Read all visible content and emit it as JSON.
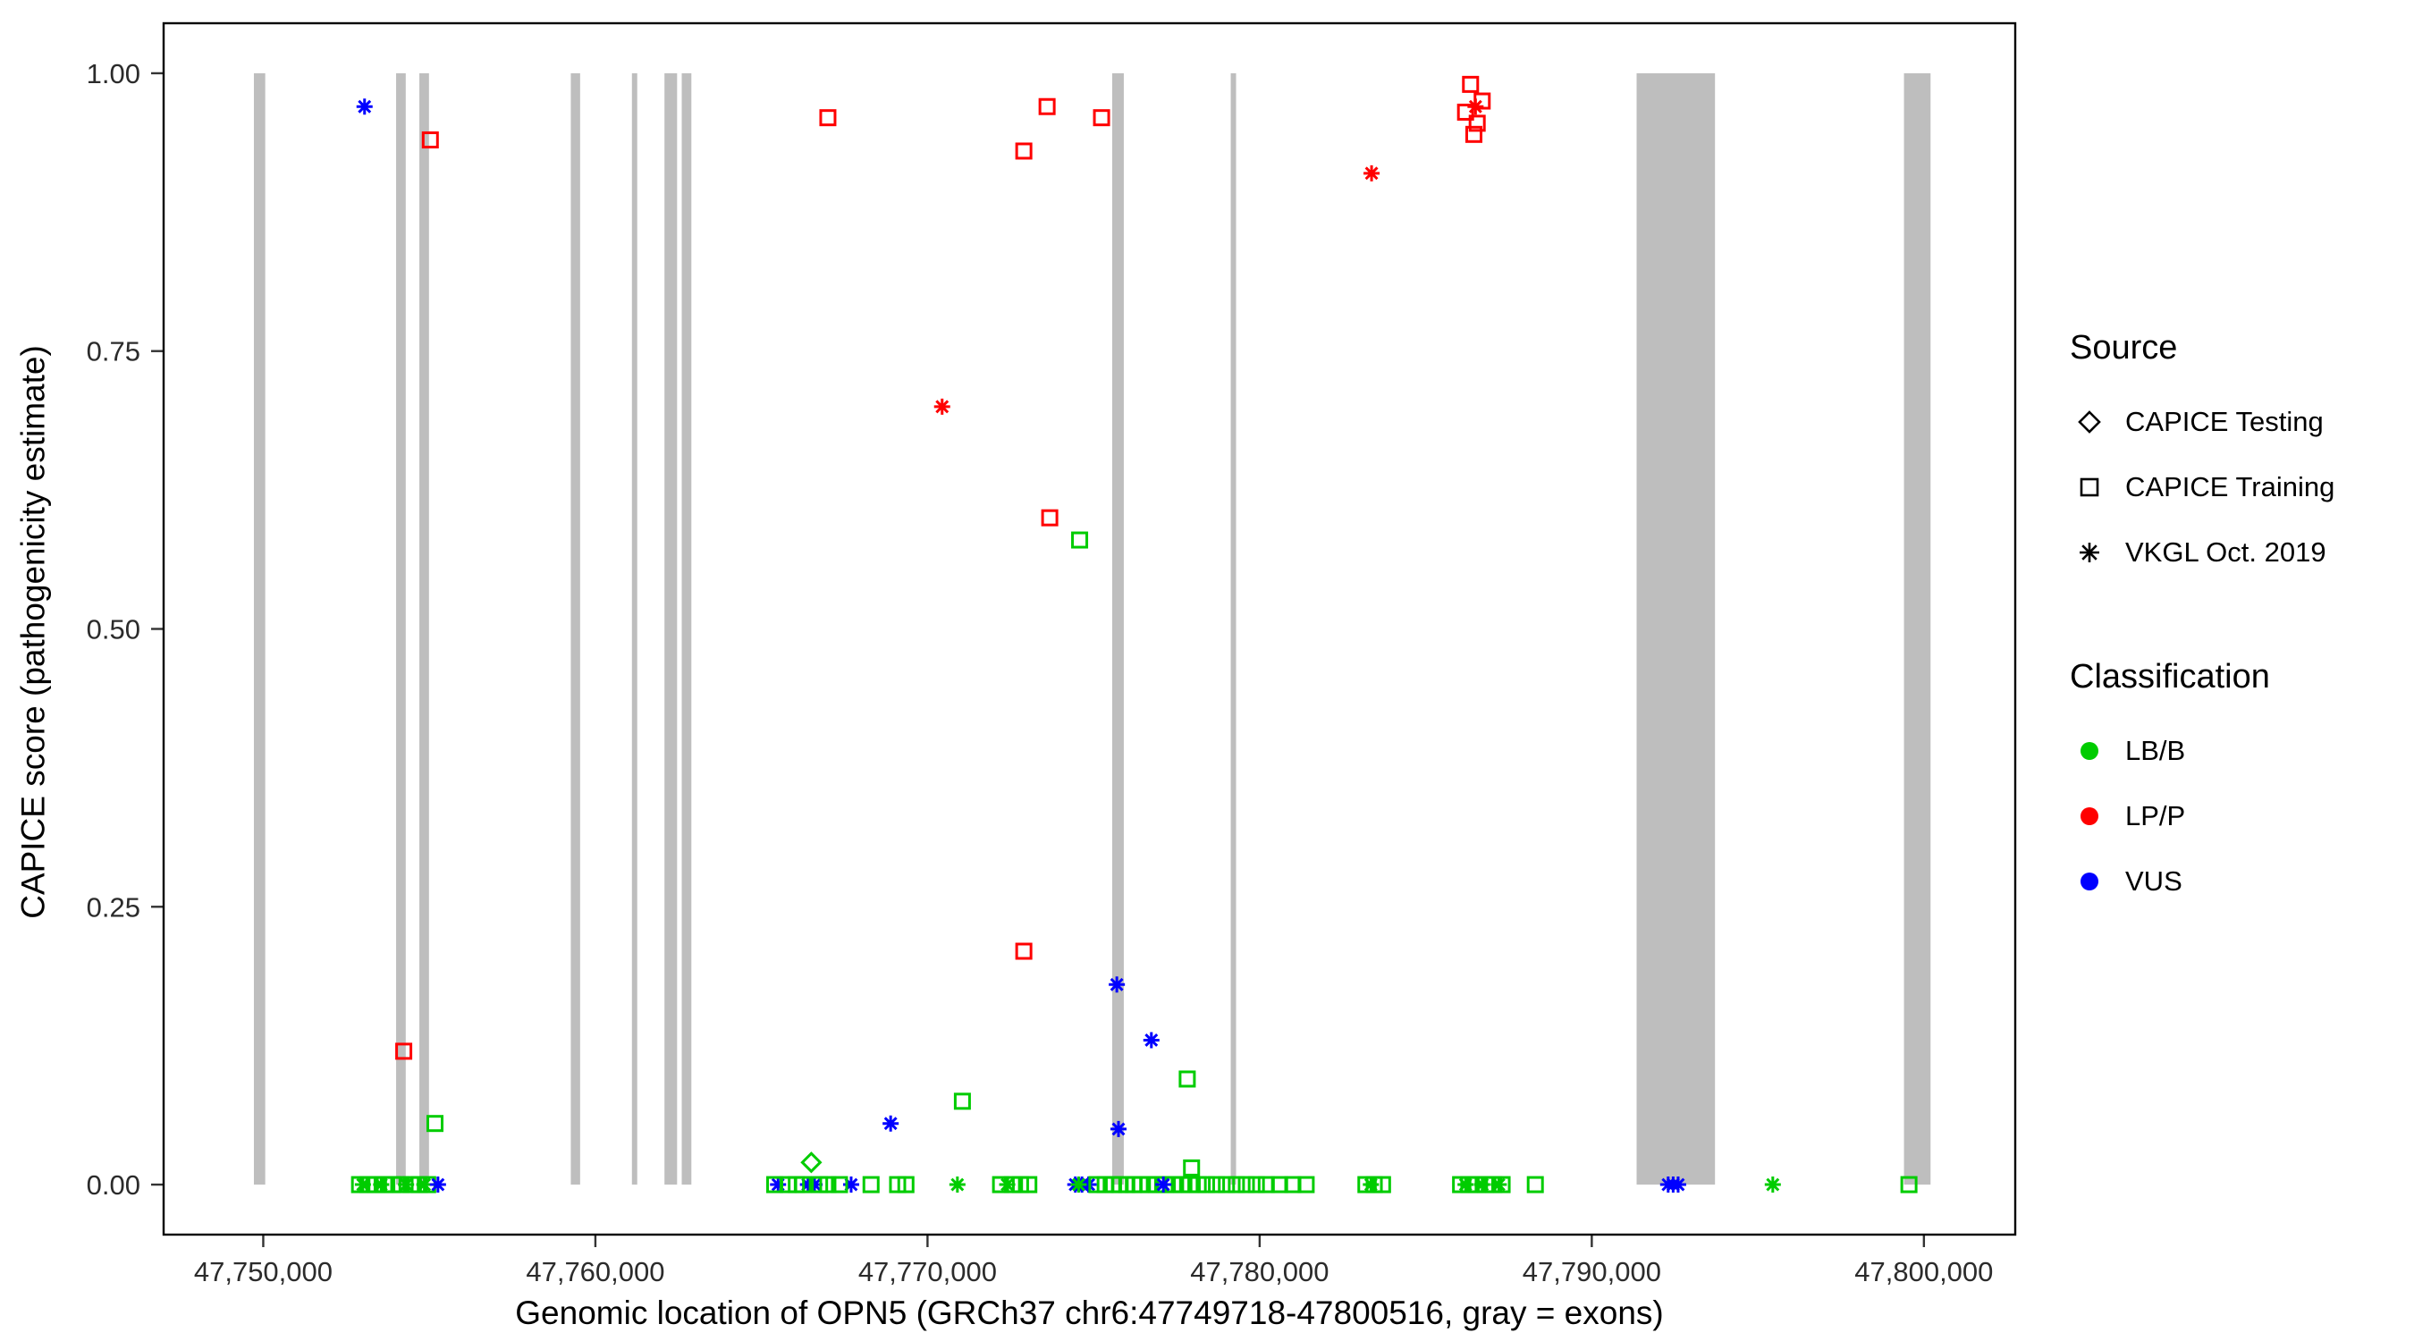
{
  "chart_data": {
    "type": "scatter",
    "title": "",
    "xlabel": "Genomic location of OPN5 (GRCh37 chr6:47749718-47800516, gray = exons)",
    "ylabel": "CAPICE score (pathogenicity estimate)",
    "xlim": [
      47747000,
      47802750
    ],
    "ylim": [
      -0.045,
      1.045
    ],
    "x_ticks": [
      47750000,
      47760000,
      47770000,
      47780000,
      47790000,
      47800000
    ],
    "x_tick_labels": [
      "47,750,000",
      "47,760,000",
      "47,770,000",
      "47,780,000",
      "47,790,000",
      "47,800,000"
    ],
    "y_ticks": [
      0.0,
      0.25,
      0.5,
      0.75,
      1.0
    ],
    "y_tick_labels": [
      "0.00",
      "0.25",
      "0.50",
      "0.75",
      "1.00"
    ],
    "grid": false,
    "exon_color": "#bebebe",
    "colors": {
      "LB/B": "#00cc00",
      "LP/P": "#ff0000",
      "VUS": "#0000ff"
    },
    "exons": [
      [
        47749718,
        47750060
      ],
      [
        47754000,
        47754290
      ],
      [
        47754700,
        47754990
      ],
      [
        47759260,
        47759540
      ],
      [
        47761100,
        47761260
      ],
      [
        47762080,
        47762460
      ],
      [
        47762600,
        47762890
      ],
      [
        47775560,
        47775910
      ],
      [
        47779130,
        47779290
      ],
      [
        47791350,
        47793710
      ],
      [
        47799400,
        47800200
      ]
    ],
    "points_format": [
      "genomic_position",
      "capice_score",
      "shape(sq=CAPICE Training, dia=CAPICE Testing, ast=VKGL Oct. 2019)",
      "classification"
    ],
    "points": [
      [
        47753050,
        0.97,
        "ast",
        "VUS"
      ],
      [
        47755030,
        0.94,
        "sq",
        "LP/P"
      ],
      [
        47754230,
        0.12,
        "sq",
        "LP/P"
      ],
      [
        47755170,
        0.055,
        "sq",
        "LB/B"
      ],
      [
        47767000,
        0.96,
        "sq",
        "LP/P"
      ],
      [
        47772900,
        0.93,
        "sq",
        "LP/P"
      ],
      [
        47773600,
        0.97,
        "sq",
        "LP/P"
      ],
      [
        47775240,
        0.96,
        "sq",
        "LP/P"
      ],
      [
        47770440,
        0.7,
        "ast",
        "LP/P"
      ],
      [
        47773680,
        0.6,
        "sq",
        "LP/P"
      ],
      [
        47774580,
        0.58,
        "sq",
        "LB/B"
      ],
      [
        47772900,
        0.21,
        "sq",
        "LP/P"
      ],
      [
        47775700,
        0.18,
        "ast",
        "VUS"
      ],
      [
        47776740,
        0.13,
        "ast",
        "VUS"
      ],
      [
        47777820,
        0.095,
        "sq",
        "LB/B"
      ],
      [
        47775750,
        0.05,
        "ast",
        "VUS"
      ],
      [
        47768890,
        0.055,
        "ast",
        "VUS"
      ],
      [
        47771050,
        0.075,
        "sq",
        "LB/B"
      ],
      [
        47783370,
        0.91,
        "ast",
        "LP/P"
      ],
      [
        47786350,
        0.99,
        "sq",
        "LP/P"
      ],
      [
        47786200,
        0.965,
        "sq",
        "LP/P"
      ],
      [
        47786550,
        0.955,
        "sq",
        "LP/P"
      ],
      [
        47786700,
        0.975,
        "sq",
        "LP/P"
      ],
      [
        47786450,
        0.945,
        "sq",
        "LP/P"
      ],
      [
        47786500,
        0.97,
        "ast",
        "LP/P"
      ],
      [
        47752900,
        0,
        "sq",
        "LB/B"
      ],
      [
        47753150,
        0,
        "sq",
        "LB/B"
      ],
      [
        47753400,
        0,
        "sq",
        "LB/B"
      ],
      [
        47753650,
        0,
        "sq",
        "LB/B"
      ],
      [
        47753900,
        0,
        "sq",
        "LB/B"
      ],
      [
        47754150,
        0,
        "sq",
        "LB/B"
      ],
      [
        47754450,
        0,
        "sq",
        "LB/B"
      ],
      [
        47754700,
        0,
        "sq",
        "LB/B"
      ],
      [
        47754950,
        0,
        "sq",
        "LB/B"
      ],
      [
        47753000,
        0,
        "ast",
        "LB/B"
      ],
      [
        47753550,
        0,
        "ast",
        "LB/B"
      ],
      [
        47754300,
        0,
        "ast",
        "LB/B"
      ],
      [
        47754850,
        0,
        "ast",
        "LB/B"
      ],
      [
        47755260,
        0,
        "ast",
        "VUS"
      ],
      [
        47765500,
        0,
        "ast",
        "VUS"
      ],
      [
        47766400,
        0,
        "ast",
        "VUS"
      ],
      [
        47766600,
        0,
        "ast",
        "VUS"
      ],
      [
        47767700,
        0,
        "ast",
        "VUS"
      ],
      [
        47765400,
        0,
        "sq",
        "LB/B"
      ],
      [
        47765800,
        0,
        "sq",
        "LB/B"
      ],
      [
        47766050,
        0,
        "sq",
        "LB/B"
      ],
      [
        47766250,
        0,
        "sq",
        "LB/B"
      ],
      [
        47766750,
        0,
        "sq",
        "LB/B"
      ],
      [
        47767000,
        0,
        "sq",
        "LB/B"
      ],
      [
        47767350,
        0,
        "sq",
        "LB/B"
      ],
      [
        47766500,
        0.02,
        "dia",
        "LB/B"
      ],
      [
        47768300,
        0,
        "sq",
        "LB/B"
      ],
      [
        47769100,
        0,
        "sq",
        "LB/B"
      ],
      [
        47769350,
        0,
        "sq",
        "LB/B"
      ],
      [
        47770900,
        0,
        "ast",
        "LB/B"
      ],
      [
        47772200,
        0,
        "sq",
        "LB/B"
      ],
      [
        47772550,
        0,
        "sq",
        "LB/B"
      ],
      [
        47772800,
        0,
        "sq",
        "LB/B"
      ],
      [
        47773050,
        0,
        "sq",
        "LB/B"
      ],
      [
        47772400,
        0,
        "ast",
        "LB/B"
      ],
      [
        47774450,
        0,
        "ast",
        "VUS"
      ],
      [
        47774650,
        0,
        "ast",
        "VUS"
      ],
      [
        47774850,
        0,
        "ast",
        "VUS"
      ],
      [
        47774550,
        0,
        "ast",
        "LB/B"
      ],
      [
        47775100,
        0,
        "sq",
        "LB/B"
      ],
      [
        47775350,
        0,
        "sq",
        "LB/B"
      ],
      [
        47775600,
        0,
        "sq",
        "LB/B"
      ],
      [
        47775800,
        0,
        "sq",
        "LB/B"
      ],
      [
        47776000,
        0,
        "sq",
        "LB/B"
      ],
      [
        47776200,
        0,
        "sq",
        "LB/B"
      ],
      [
        47776400,
        0,
        "sq",
        "LB/B"
      ],
      [
        47776650,
        0,
        "sq",
        "LB/B"
      ],
      [
        47776900,
        0,
        "sq",
        "LB/B"
      ],
      [
        47777150,
        0,
        "sq",
        "LB/B"
      ],
      [
        47777400,
        0,
        "sq",
        "LB/B"
      ],
      [
        47777650,
        0,
        "sq",
        "LB/B"
      ],
      [
        47777900,
        0,
        "sq",
        "LB/B"
      ],
      [
        47778150,
        0,
        "sq",
        "LB/B"
      ],
      [
        47778400,
        0,
        "sq",
        "LB/B"
      ],
      [
        47778700,
        0,
        "sq",
        "LB/B"
      ],
      [
        47779000,
        0,
        "sq",
        "LB/B"
      ],
      [
        47779300,
        0,
        "sq",
        "LB/B"
      ],
      [
        47779600,
        0,
        "sq",
        "LB/B"
      ],
      [
        47779900,
        0,
        "sq",
        "LB/B"
      ],
      [
        47780200,
        0,
        "sq",
        "LB/B"
      ],
      [
        47780600,
        0,
        "sq",
        "LB/B"
      ],
      [
        47781000,
        0,
        "sq",
        "LB/B"
      ],
      [
        47781400,
        0,
        "sq",
        "LB/B"
      ],
      [
        47777100,
        0,
        "ast",
        "VUS"
      ],
      [
        47777950,
        0.015,
        "sq",
        "LB/B"
      ],
      [
        47783200,
        0,
        "sq",
        "LB/B"
      ],
      [
        47783450,
        0,
        "sq",
        "LB/B"
      ],
      [
        47783700,
        0,
        "sq",
        "LB/B"
      ],
      [
        47783350,
        0,
        "ast",
        "LB/B"
      ],
      [
        47786050,
        0,
        "sq",
        "LB/B"
      ],
      [
        47786300,
        0,
        "sq",
        "LB/B"
      ],
      [
        47786550,
        0,
        "sq",
        "LB/B"
      ],
      [
        47786800,
        0,
        "sq",
        "LB/B"
      ],
      [
        47787050,
        0,
        "sq",
        "LB/B"
      ],
      [
        47787300,
        0,
        "sq",
        "LB/B"
      ],
      [
        47786200,
        0,
        "ast",
        "LB/B"
      ],
      [
        47786700,
        0,
        "ast",
        "LB/B"
      ],
      [
        47787200,
        0,
        "ast",
        "LB/B"
      ],
      [
        47788300,
        0,
        "sq",
        "LB/B"
      ],
      [
        47792300,
        0,
        "ast",
        "VUS"
      ],
      [
        47792450,
        0,
        "ast",
        "VUS"
      ],
      [
        47792600,
        0,
        "ast",
        "VUS"
      ],
      [
        47795450,
        0,
        "ast",
        "LB/B"
      ],
      [
        47799550,
        0,
        "sq",
        "LB/B"
      ]
    ]
  },
  "legend": {
    "source": {
      "title": "Source",
      "items": [
        {
          "label": "CAPICE Testing",
          "glyph": "diamond-open"
        },
        {
          "label": "CAPICE Training",
          "glyph": "square-open"
        },
        {
          "label": "VKGL Oct. 2019",
          "glyph": "asterisk"
        }
      ]
    },
    "classification": {
      "title": "Classification",
      "items": [
        {
          "label": "LB/B",
          "color": "#00cc00"
        },
        {
          "label": "LP/P",
          "color": "#ff0000"
        },
        {
          "label": "VUS",
          "color": "#0000ff"
        }
      ]
    }
  }
}
